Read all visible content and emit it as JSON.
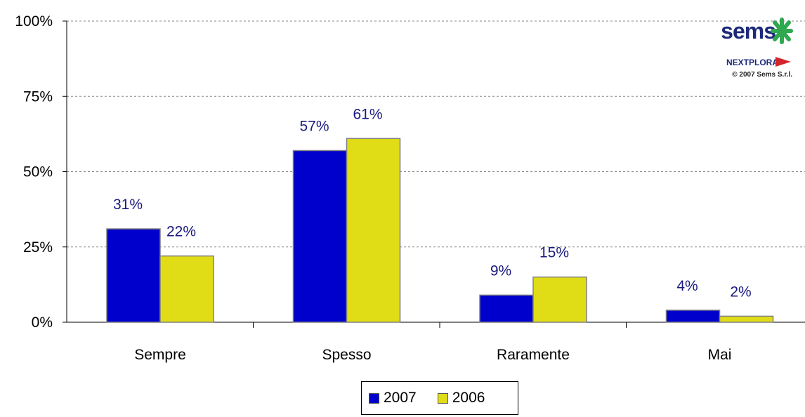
{
  "chart_data": {
    "type": "bar",
    "categories": [
      "Sempre",
      "Spesso",
      "Raramente",
      "Mai"
    ],
    "series": [
      {
        "name": "2007",
        "color": "#0000cc",
        "values": [
          31,
          57,
          9,
          4
        ],
        "labels": [
          "31%",
          "57%",
          "9%",
          "4%"
        ]
      },
      {
        "name": "2006",
        "color": "#e0dc16",
        "values": [
          22,
          61,
          15,
          2
        ],
        "labels": [
          "22%",
          "61%",
          "15%",
          "2%"
        ]
      }
    ],
    "y_ticks": [
      "0%",
      "25%",
      "50%",
      "75%",
      "100%"
    ],
    "ylim": [
      0,
      100
    ],
    "grid": "horizontal dashed",
    "legend_position": "bottom-center",
    "label_color": "#1a1a80"
  },
  "logo": {
    "brand": "sems",
    "sub": "NEXTPLORA",
    "copyright": "© 2007 Sems S.r.l."
  }
}
